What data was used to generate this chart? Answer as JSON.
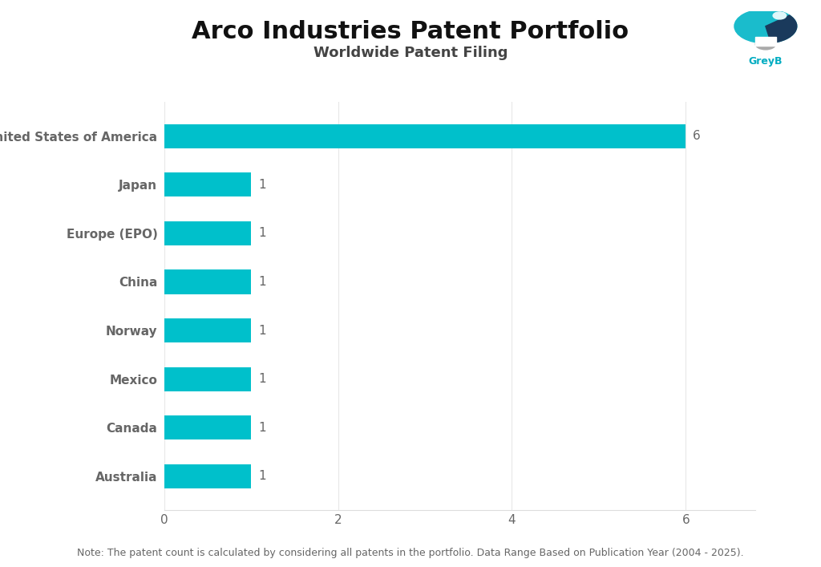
{
  "title": "Arco Industries Patent Portfolio",
  "subtitle": "Worldwide Patent Filing",
  "categories": [
    "United States of America",
    "Japan",
    "Europe (EPO)",
    "China",
    "Norway",
    "Mexico",
    "Canada",
    "Australia"
  ],
  "values": [
    6,
    1,
    1,
    1,
    1,
    1,
    1,
    1
  ],
  "bar_color": "#00C0CB",
  "label_color": "#666666",
  "value_color": "#666666",
  "title_color": "#111111",
  "subtitle_color": "#444444",
  "background_color": "#ffffff",
  "note_text": "Note: The patent count is calculated by considering all patents in the portfolio. Data Range Based on Publication Year (2004 - 2025).",
  "xlim": [
    0,
    6.8
  ],
  "xticks": [
    0,
    2,
    4,
    6
  ],
  "title_fontsize": 22,
  "subtitle_fontsize": 13,
  "label_fontsize": 11,
  "value_fontsize": 11,
  "note_fontsize": 9,
  "tick_fontsize": 11,
  "greyb_color": "#00ACC1",
  "logo_teal": "#1ABCCC",
  "logo_navy": "#1B4F72",
  "logo_dark": "#1A3A5C"
}
